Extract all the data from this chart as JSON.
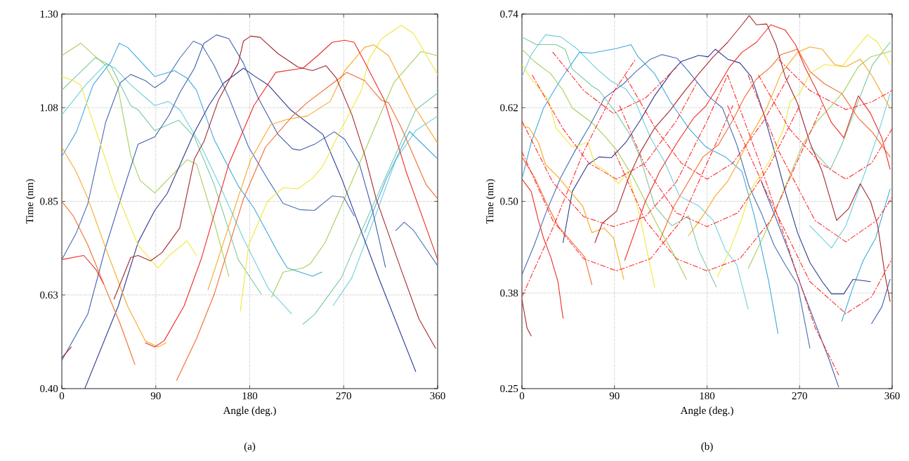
{
  "chart_data": [
    {
      "type": "line",
      "title": "(a)",
      "xlabel": "Angle (deg.)",
      "ylabel": "Time (nm)",
      "xlim": [
        0,
        360
      ],
      "ylim": [
        0.4,
        1.3
      ],
      "xticks": [
        0,
        90,
        180,
        270,
        360
      ],
      "yticks": [
        {
          "value": 0.4,
          "label": "0.40"
        },
        {
          "value": 0.625,
          "label": "0.63"
        },
        0.85,
        {
          "value": 1.075,
          "label": "1.08"
        },
        {
          "value": 1.3,
          "label": "1.30"
        }
      ],
      "grid": true,
      "line_style": "solid",
      "series": [
        {
          "color": "#a6cf5a",
          "x": [
            0,
            18,
            42,
            54,
            66,
            75,
            89,
            120,
            129,
            146,
            160,
            180,
            201,
            212,
            231,
            238,
            252,
            268,
            290,
            318,
            344,
            360
          ],
          "values": [
            1.2,
            1.23,
            1.176,
            1.12,
            0.96,
            0.9,
            0.87,
            0.95,
            0.94,
            0.8,
            0.67,
            null,
            0.62,
            0.68,
            0.69,
            0.7,
            0.75,
            0.84,
            0.97,
            1.135,
            1.21,
            1.2
          ]
        },
        {
          "color": "#7dc8a0",
          "x": [
            0,
            32,
            47,
            66,
            73,
            89,
            112,
            127,
            146,
            169,
            191,
            210,
            231,
            242,
            268,
            278,
            301,
            320,
            339,
            360
          ],
          "values": [
            1.117,
            1.195,
            1.176,
            1.08,
            1.07,
            1.02,
            1.045,
            1.005,
            0.89,
            0.71,
            0.627,
            null,
            0.555,
            0.578,
            0.667,
            0.727,
            0.857,
            0.964,
            1.07,
            1.11
          ]
        },
        {
          "color": "#6fcfdc",
          "x": [
            0,
            23,
            42,
            51,
            66,
            89,
            102,
            113,
            132,
            151,
            174,
            198,
            220,
            240,
            260,
            278,
            301,
            320,
            339,
            360
          ],
          "values": [
            1.058,
            1.13,
            1.18,
            1.17,
            1.13,
            1.08,
            1.09,
            1.07,
            0.99,
            0.89,
            0.76,
            0.64,
            0.58,
            null,
            0.6,
            0.667,
            0.82,
            0.95,
            1.02,
            1.055
          ]
        },
        {
          "color": "#3fa9dd",
          "x": [
            0,
            14,
            30,
            47,
            55,
            63,
            89,
            108,
            120,
            129,
            146,
            169,
            184,
            207,
            216,
            240,
            249,
            270,
            290,
            311,
            333,
            360
          ],
          "values": [
            0.958,
            1.017,
            1.13,
            1.185,
            1.23,
            1.22,
            1.15,
            1.164,
            1.146,
            1.117,
            0.998,
            0.887,
            0.834,
            0.727,
            0.69,
            0.67,
            0.68,
            null,
            0.775,
            0.905,
            1.018,
            0.952
          ]
        },
        {
          "color": "#4a6cb5",
          "x": [
            0,
            14,
            25,
            42,
            56,
            66,
            80,
            89,
            99,
            113,
            126,
            134,
            146,
            160,
            179,
            198,
            212,
            228,
            242,
            259,
            270,
            280,
            300,
            320,
            328,
            337,
            360
          ],
          "values": [
            0.71,
            0.775,
            0.845,
            1.04,
            1.135,
            1.155,
            1.14,
            1.123,
            1.14,
            1.194,
            1.235,
            1.226,
            1.176,
            1.1,
            0.98,
            0.9,
            0.845,
            0.83,
            0.828,
            0.863,
            0.86,
            0.815,
            null,
            0.78,
            0.8,
            0.78,
            0.695
          ]
        },
        {
          "color": "#2c3a8f",
          "x": [
            22,
            54,
            73,
            89,
            101,
            127,
            141,
            155,
            174,
            184,
            198,
            219,
            250,
            268,
            304,
            339
          ],
          "values": [
            0.4,
            0.598,
            0.751,
            0.828,
            0.869,
            1.016,
            1.081,
            1.134,
            1.17,
            1.152,
            1.129,
            1.07,
            1.011,
            0.905,
            0.663,
            0.441
          ]
        },
        {
          "color": "#3d5fae",
          "x": [
            0,
            25,
            42,
            61,
            73,
            89,
            103,
            113,
            127,
            136,
            148,
            160,
            174,
            188,
            207,
            221,
            228,
            242,
            261,
            271,
            285,
            297,
            310
          ],
          "values": [
            0.468,
            0.58,
            0.74,
            0.893,
            0.987,
            1.005,
            1.058,
            1.111,
            1.17,
            1.229,
            1.25,
            1.241,
            1.182,
            1.099,
            1.011,
            0.976,
            0.973,
            0.987,
            1.017,
            0.999,
            0.94,
            0.834,
            0.692
          ]
        },
        {
          "color": "#f0e83c",
          "x": [
            0,
            11,
            18,
            37,
            51,
            73,
            92,
            103,
            120,
            129,
            150,
            171,
            179,
            197,
            212,
            226,
            240,
            250,
            271,
            287,
            294,
            306,
            325,
            337,
            360
          ],
          "values": [
            1.15,
            1.14,
            1.13,
            0.988,
            0.88,
            0.745,
            0.69,
            0.72,
            0.755,
            0.72,
            null,
            0.586,
            0.745,
            0.85,
            0.883,
            0.88,
            0.905,
            0.935,
            1.04,
            1.117,
            1.19,
            1.24,
            1.273,
            1.253,
            1.155
          ]
        },
        {
          "color": "#f7a823",
          "x": [
            0,
            14,
            25,
            42,
            63,
            80,
            92,
            100,
            120,
            140,
            169,
            181,
            200,
            216,
            235,
            257,
            271,
            290,
            299,
            313,
            337,
            360
          ],
          "values": [
            0.98,
            0.92,
            0.857,
            0.738,
            0.598,
            0.515,
            0.5,
            0.51,
            null,
            0.637,
            0.86,
            0.95,
            1.034,
            1.047,
            1.055,
            1.09,
            1.164,
            1.22,
            1.226,
            1.2,
            1.08,
            0.99
          ]
        },
        {
          "color": "#f26b2b",
          "x": [
            0,
            11,
            25,
            42,
            56,
            70,
            90,
            110,
            129,
            146,
            174,
            195,
            221,
            235,
            266,
            273,
            290,
            306,
            313,
            325,
            349,
            360
          ],
          "values": [
            0.85,
            0.815,
            0.745,
            0.64,
            0.555,
            0.458,
            null,
            0.42,
            0.52,
            0.627,
            0.856,
            0.98,
            1.055,
            1.087,
            1.146,
            1.16,
            1.14,
            1.093,
            1.087,
            1.028,
            0.89,
            0.856
          ]
        },
        {
          "color": "#ee2b26",
          "x": [
            0,
            21,
            33,
            40,
            60,
            80,
            89,
            98,
            117,
            134,
            160,
            184,
            205,
            231,
            245,
            259,
            271,
            280,
            289,
            309,
            330,
            360
          ],
          "values": [
            0.71,
            0.72,
            0.685,
            0.652,
            null,
            0.51,
            0.5,
            0.515,
            0.598,
            0.715,
            0.94,
            1.08,
            1.16,
            1.17,
            1.2,
            1.232,
            1.237,
            1.232,
            1.19,
            1.093,
            0.92,
            0.71
          ]
        },
        {
          "color": "#a5272a",
          "x": [
            0,
            9,
            30,
            50,
            66,
            73,
            85,
            96,
            113,
            127,
            136,
            150,
            169,
            174,
            181,
            190,
            207,
            226,
            240,
            253,
            263,
            278,
            290,
            301,
            325,
            342,
            358
          ],
          "values": [
            0.474,
            0.5,
            null,
            0.615,
            0.715,
            0.72,
            0.707,
            0.727,
            0.786,
            0.952,
            0.993,
            1.093,
            1.182,
            1.235,
            1.247,
            1.244,
            1.205,
            1.173,
            1.164,
            1.176,
            1.146,
            1.057,
            0.963,
            0.857,
            0.686,
            0.568,
            0.497
          ]
        }
      ]
    },
    {
      "type": "line",
      "title": "(b)",
      "xlabel": "Angle (deg.)",
      "ylabel": "Time (nm)",
      "xlim": [
        0,
        360
      ],
      "ylim": [
        0.25,
        0.74
      ],
      "xticks": [
        0,
        90,
        180,
        270,
        360
      ],
      "yticks": [
        0.25,
        {
          "value": 0.375,
          "label": "0.38"
        },
        {
          "value": 0.495,
          "label": "0.50"
        },
        {
          "value": 0.6175,
          "label": "0.62"
        },
        0.74
      ],
      "grid": true,
      "line_style": "solid",
      "series": [
        {
          "color": "#7dc8a0",
          "x": [
            0,
            14,
            33,
            42,
            49,
            68,
            75,
            92,
            106,
            115,
            129,
            139,
            146,
            162,
            172,
            189,
            240,
            280,
            300,
            311,
            327,
            341,
            358
          ],
          "values": [
            0.71,
            0.7,
            0.7,
            0.694,
            0.668,
            0.646,
            0.64,
            0.61,
            0.58,
            0.553,
            0.489,
            0.473,
            0.463,
            0.476,
            0.431,
            0.383,
            null,
            0.566,
            0.537,
            0.569,
            0.626,
            0.674,
            0.703
          ]
        },
        {
          "color": "#a6cf5a",
          "x": [
            0,
            12,
            28,
            40,
            49,
            68,
            82,
            92,
            108,
            120,
            132,
            148,
            160,
            190,
            220,
            233,
            245,
            256,
            273,
            287,
            299,
            313,
            327,
            339,
            360
          ],
          "values": [
            0.694,
            0.678,
            0.662,
            0.64,
            0.617,
            0.598,
            0.578,
            0.562,
            0.527,
            0.495,
            0.463,
            0.425,
            0.393,
            null,
            0.407,
            0.444,
            0.479,
            0.514,
            0.569,
            0.6,
            0.617,
            0.639,
            0.671,
            0.684,
            0.692
          ]
        },
        {
          "color": "#6fcfdc",
          "x": [
            0,
            9,
            23,
            38,
            54,
            73,
            87,
            101,
            111,
            125,
            139,
            153,
            172,
            186,
            198,
            209,
            220,
            250,
            280,
            301,
            315,
            332,
            346,
            358
          ],
          "values": [
            0.658,
            0.687,
            0.713,
            0.71,
            0.694,
            0.668,
            0.652,
            0.642,
            0.623,
            0.578,
            0.546,
            0.502,
            0.489,
            0.47,
            0.431,
            0.412,
            0.354,
            null,
            0.463,
            0.434,
            0.463,
            0.527,
            0.582,
            0.636
          ]
        },
        {
          "color": "#3fa9dd",
          "x": [
            0,
            9,
            21,
            38,
            56,
            68,
            92,
            106,
            113,
            129,
            144,
            162,
            179,
            198,
            214,
            226,
            240,
            249,
            280,
            311,
            322,
            332,
            344,
            358
          ],
          "values": [
            0.524,
            0.572,
            0.617,
            0.655,
            0.69,
            0.689,
            0.695,
            0.7,
            0.684,
            0.662,
            0.626,
            0.591,
            0.566,
            0.553,
            0.534,
            0.476,
            0.39,
            0.322,
            null,
            0.338,
            0.383,
            0.418,
            0.447,
            0.511
          ]
        },
        {
          "color": "#4a6cb5",
          "x": [
            0,
            12,
            23,
            38,
            52,
            66,
            80,
            99,
            111,
            125,
            136,
            151,
            162,
            181,
            195,
            209,
            221,
            233,
            245,
            256,
            268,
            280
          ],
          "values": [
            0.399,
            0.438,
            0.479,
            0.527,
            0.562,
            0.594,
            0.63,
            0.649,
            0.665,
            0.681,
            0.687,
            0.682,
            0.665,
            0.633,
            0.617,
            0.569,
            0.514,
            0.479,
            0.438,
            0.412,
            0.386,
            0.303
          ]
        },
        {
          "color": "#2c3a8f",
          "x": [
            40,
            49,
            64,
            75,
            87,
            101,
            115,
            129,
            146,
            155,
            172,
            181,
            188,
            200,
            212,
            223,
            235,
            247,
            256,
            268,
            280,
            292,
            301,
            313,
            322,
            339
          ],
          "values": [
            0.441,
            0.508,
            0.543,
            0.553,
            0.552,
            0.572,
            0.601,
            0.633,
            0.665,
            0.678,
            0.686,
            0.684,
            0.694,
            0.681,
            0.676,
            0.658,
            0.61,
            0.553,
            0.508,
            0.454,
            0.415,
            0.39,
            0.374,
            0.374,
            0.393,
            0.39
          ]
        },
        {
          "color": "#3d5fae",
          "x": [
            233,
            247,
            259,
            271,
            287,
            299,
            308,
            325,
            340,
            350,
            358
          ],
          "values": [
            0.52,
            0.473,
            0.431,
            0.386,
            0.329,
            0.287,
            0.252,
            null,
            0.335,
            0.357,
            0.393
          ]
        },
        {
          "color": "#f0e83c",
          "x": [
            0,
            9,
            19,
            26,
            33,
            49,
            64,
            71,
            82,
            94,
            103,
            115,
            125,
            129,
            160,
            190,
            202,
            214,
            223,
            240,
            254,
            261,
            270,
            280,
            294,
            311,
            322,
            336,
            346,
            358
          ],
          "values": [
            0.674,
            0.655,
            0.639,
            0.627,
            0.591,
            0.566,
            0.572,
            0.543,
            0.534,
            0.518,
            0.534,
            0.473,
            0.409,
            0.383,
            null,
            0.396,
            0.431,
            0.473,
            0.511,
            0.546,
            0.588,
            0.626,
            0.636,
            0.662,
            0.674,
            0.671,
            0.69,
            0.713,
            0.703,
            0.674
          ]
        },
        {
          "color": "#f7a823",
          "x": [
            0,
            7,
            16,
            23,
            35,
            47,
            59,
            68,
            80,
            89,
            99,
            130,
            162,
            176,
            188,
            200,
            209,
            223,
            238,
            252,
            268,
            280,
            292,
            304,
            315,
            329,
            341,
            350,
            358
          ],
          "values": [
            0.594,
            0.591,
            0.572,
            0.543,
            0.527,
            0.508,
            0.489,
            0.454,
            0.46,
            0.447,
            0.393,
            null,
            0.45,
            0.476,
            0.502,
            0.521,
            0.543,
            0.582,
            0.617,
            0.662,
            0.69,
            0.697,
            0.694,
            0.674,
            0.671,
            0.681,
            0.658,
            0.636,
            0.617
          ]
        },
        {
          "color": "#f26b2b",
          "x": [
            0,
            12,
            23,
            35,
            49,
            61,
            68,
            100,
            134,
            148,
            162,
            176,
            191,
            205,
            216,
            228,
            242,
            252,
            268,
            280,
            294,
            311,
            327,
            341,
            358
          ],
          "values": [
            0.553,
            0.527,
            0.495,
            0.463,
            0.441,
            0.422,
            0.386,
            null,
            0.444,
            0.489,
            0.521,
            0.553,
            0.569,
            0.601,
            0.63,
            0.655,
            0.671,
            0.687,
            0.694,
            0.665,
            0.649,
            0.636,
            0.604,
            0.585,
            0.553
          ]
        },
        {
          "color": "#ee2b26",
          "x": [
            0,
            9,
            16,
            21,
            28,
            35,
            40,
            70,
            100,
            111,
            120,
            134,
            151,
            167,
            179,
            191,
            202,
            214,
            228,
            242,
            256,
            266,
            275,
            287,
            301,
            313,
            327,
            339,
            350,
            358
          ],
          "values": [
            0.524,
            0.508,
            0.47,
            0.447,
            0.422,
            0.39,
            0.342,
            null,
            0.418,
            0.46,
            0.495,
            0.534,
            0.572,
            0.604,
            0.62,
            0.646,
            0.671,
            0.69,
            0.703,
            0.726,
            0.719,
            0.7,
            0.671,
            0.639,
            0.598,
            0.578,
            0.633,
            0.61,
            0.578,
            0.537
          ]
        },
        {
          "color": "#a5272a",
          "x": [
            0,
            5,
            9,
            40,
            71,
            78,
            92,
            104,
            115,
            129,
            144,
            158,
            172,
            186,
            200,
            214,
            221,
            228,
            238,
            247,
            256,
            268,
            280,
            292,
            299,
            306,
            318,
            329,
            339,
            346,
            353,
            358
          ],
          "values": [
            0.367,
            0.329,
            0.319,
            null,
            0.441,
            0.466,
            0.482,
            0.527,
            0.559,
            0.591,
            0.614,
            0.639,
            0.662,
            0.684,
            0.703,
            0.726,
            0.738,
            0.726,
            0.727,
            0.7,
            0.658,
            0.623,
            0.572,
            0.534,
            0.502,
            0.47,
            0.486,
            0.518,
            0.495,
            0.463,
            0.399,
            0.364
          ]
        },
        {
          "color": "#ff2a2a",
          "line_style": "dashed",
          "x": [
            0,
            30,
            60,
            92,
            125,
            155,
            185,
            205
          ],
          "values": [
            0.56,
            0.47,
            0.42,
            0.404,
            0.42,
            0.47,
            0.56,
            0.62
          ]
        },
        {
          "color": "#ff2a2a",
          "line_style": "dashed",
          "x": [
            90,
            120,
            150,
            180,
            212,
            242,
            272,
            292
          ],
          "values": [
            0.56,
            0.47,
            0.42,
            0.404,
            0.42,
            0.47,
            0.56,
            0.62
          ]
        },
        {
          "color": "#ff2a2a",
          "line_style": "dashed",
          "x": [
            0,
            30,
            60,
            89,
            120,
            150,
            180,
            200
          ],
          "values": [
            0.6,
            0.52,
            0.475,
            0.462,
            0.475,
            0.52,
            0.6,
            0.66
          ]
        },
        {
          "color": "#ff2a2a",
          "line_style": "dashed",
          "x": [
            95,
            120,
            150,
            180,
            210,
            240,
            270
          ],
          "values": [
            0.62,
            0.54,
            0.48,
            0.462,
            0.48,
            0.54,
            0.62
          ]
        },
        {
          "color": "#ff2a2a",
          "line_style": "dashed",
          "x": [
            10,
            40,
            65,
            92,
            120,
            150,
            170
          ],
          "values": [
            0.66,
            0.59,
            0.545,
            0.524,
            0.545,
            0.6,
            0.65
          ]
        },
        {
          "color": "#ff2a2a",
          "line_style": "dashed",
          "x": [
            100,
            130,
            155,
            180,
            205,
            235,
            260
          ],
          "values": [
            0.66,
            0.59,
            0.545,
            0.524,
            0.545,
            0.6,
            0.66
          ]
        },
        {
          "color": "#ff2a2a",
          "line_style": "dashed",
          "x": [
            230,
            260,
            290,
            315,
            340,
            360
          ],
          "values": [
            0.66,
            0.59,
            0.545,
            0.524,
            0.545,
            0.59
          ]
        },
        {
          "color": "#ff2a2a",
          "line_style": "dashed",
          "x": [
            220,
            250,
            285,
            315,
            345,
            360
          ],
          "values": [
            0.66,
            0.56,
            0.47,
            0.442,
            0.47,
            0.5
          ]
        },
        {
          "color": "#ff2a2a",
          "line_style": "dashed",
          "x": [
            200,
            240,
            280,
            315,
            340,
            360
          ],
          "values": [
            0.62,
            0.5,
            0.39,
            0.348,
            0.37,
            0.42
          ]
        },
        {
          "color": "#ff2a2a",
          "line_style": "dashed",
          "x": [
            250,
            280,
            315,
            340,
            360
          ],
          "values": [
            0.68,
            0.64,
            0.615,
            0.625,
            0.64
          ]
        },
        {
          "color": "#ff2a2a",
          "line_style": "dashed",
          "x": [
            200,
            230,
            260,
            285,
            308
          ],
          "values": [
            0.66,
            0.55,
            0.43,
            0.33,
            0.268
          ]
        },
        {
          "color": "#ff2a2a",
          "line_style": "dashed",
          "x": [
            0,
            30,
            60,
            90,
            110
          ],
          "values": [
            0.37,
            0.46,
            0.56,
            0.64,
            0.68
          ]
        },
        {
          "color": "#ff2a2a",
          "line_style": "dashed",
          "x": [
            30,
            60,
            89,
            120,
            150
          ],
          "values": [
            0.69,
            0.64,
            0.61,
            0.63,
            0.67
          ]
        }
      ]
    }
  ]
}
